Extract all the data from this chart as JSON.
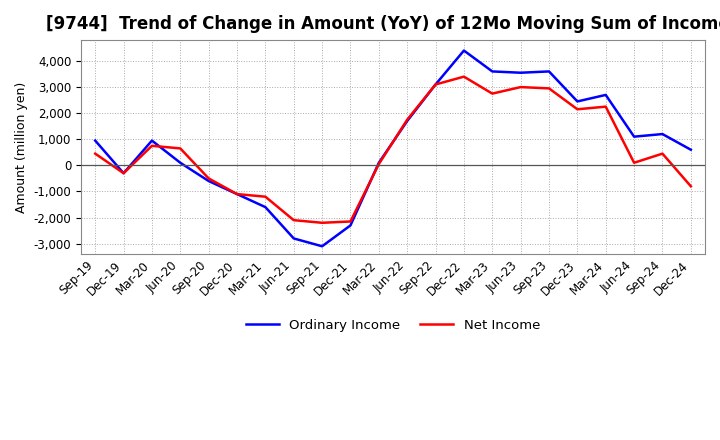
{
  "title": "[9744]  Trend of Change in Amount (YoY) of 12Mo Moving Sum of Incomes",
  "ylabel": "Amount (million yen)",
  "background_color": "#ffffff",
  "grid_color": "#aaaaaa",
  "ylim": [
    -3400,
    4800
  ],
  "yticks": [
    -3000,
    -2000,
    -1000,
    0,
    1000,
    2000,
    3000,
    4000
  ],
  "dates": [
    "Sep-19",
    "Dec-19",
    "Mar-20",
    "Jun-20",
    "Sep-20",
    "Dec-20",
    "Mar-21",
    "Jun-21",
    "Sep-21",
    "Dec-21",
    "Mar-22",
    "Jun-22",
    "Sep-22",
    "Dec-22",
    "Mar-23",
    "Jun-23",
    "Sep-23",
    "Dec-23",
    "Mar-24",
    "Jun-24",
    "Sep-24",
    "Dec-24"
  ],
  "ordinary_income": [
    950,
    -300,
    950,
    100,
    -600,
    -1100,
    -1600,
    -2800,
    -3100,
    -2300,
    100,
    1700,
    3100,
    4400,
    3600,
    3550,
    3600,
    2450,
    2700,
    1100,
    1200,
    600
  ],
  "net_income": [
    450,
    -300,
    750,
    650,
    -500,
    -1100,
    -1200,
    -2100,
    -2200,
    -2150,
    50,
    1750,
    3100,
    3400,
    2750,
    3000,
    2950,
    2150,
    2250,
    100,
    450,
    -800
  ],
  "ordinary_income_color": "#0000ff",
  "net_income_color": "#ff0000",
  "line_width": 1.8,
  "legend_labels": [
    "Ordinary Income",
    "Net Income"
  ],
  "title_fontsize": 12,
  "label_fontsize": 9,
  "tick_fontsize": 8.5
}
